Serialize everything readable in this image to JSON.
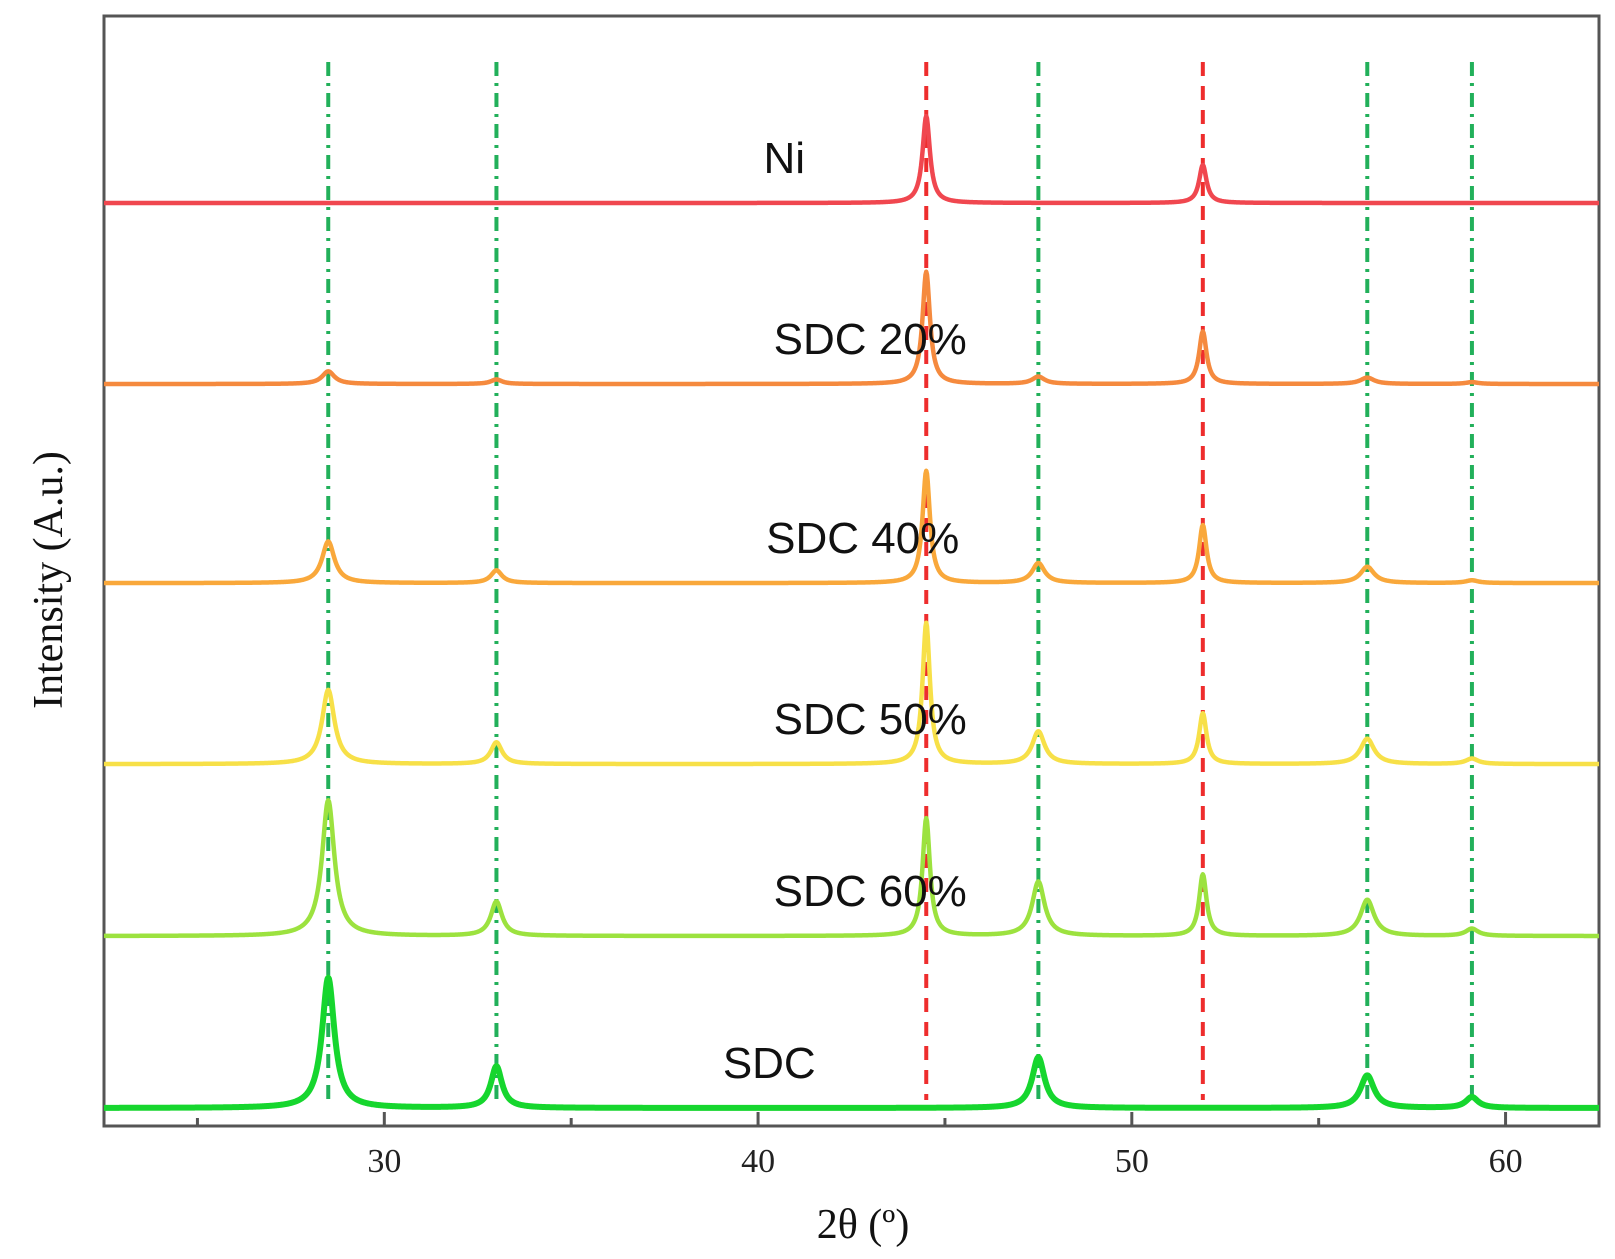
{
  "chart_data": {
    "type": "line",
    "title": "",
    "xlabel": "2θ (º)",
    "ylabel": "Intensity (A.u.)",
    "xlim": [
      22.5,
      62.5
    ],
    "x_ticks": [
      30,
      40,
      50,
      60
    ],
    "x_tick_labels": [
      "30",
      "40",
      "50",
      "60"
    ],
    "grid": false,
    "reference_lines": [
      {
        "phase": "SDC",
        "x": 28.5,
        "color": "#22b05a",
        "style": "dash-dot"
      },
      {
        "phase": "SDC",
        "x": 33.0,
        "color": "#22b05a",
        "style": "dash-dot"
      },
      {
        "phase": "Ni",
        "x": 44.5,
        "color": "#ee2d2d",
        "style": "dashed"
      },
      {
        "phase": "SDC",
        "x": 47.5,
        "color": "#22b05a",
        "style": "dash-dot"
      },
      {
        "phase": "Ni",
        "x": 51.9,
        "color": "#ee2d2d",
        "style": "dashed"
      },
      {
        "phase": "SDC",
        "x": 56.3,
        "color": "#22b05a",
        "style": "dash-dot"
      },
      {
        "phase": "SDC",
        "x": 59.1,
        "color": "#22b05a",
        "style": "dash-dot"
      }
    ],
    "series": [
      {
        "name": "Ni",
        "label": "Ni",
        "color": "#f0474f",
        "offset": 5.0,
        "label_x": 40.7,
        "peaks": [
          {
            "x": 44.5,
            "h": 0.48,
            "w": 0.12
          },
          {
            "x": 51.9,
            "h": 0.21,
            "w": 0.12
          }
        ]
      },
      {
        "name": "SDC 20%",
        "label": "SDC 20%",
        "color": "#f58a3e",
        "offset": 4.0,
        "label_x": 43.0,
        "peaks": [
          {
            "x": 28.5,
            "h": 0.07,
            "w": 0.2
          },
          {
            "x": 33.0,
            "h": 0.025,
            "w": 0.18
          },
          {
            "x": 44.5,
            "h": 0.62,
            "w": 0.12
          },
          {
            "x": 47.5,
            "h": 0.04,
            "w": 0.2
          },
          {
            "x": 51.9,
            "h": 0.29,
            "w": 0.12
          },
          {
            "x": 56.3,
            "h": 0.035,
            "w": 0.22
          },
          {
            "x": 59.1,
            "h": 0.01,
            "w": 0.2
          }
        ]
      },
      {
        "name": "SDC 40%",
        "label": "SDC 40%",
        "color": "#f9a83b",
        "offset": 2.9,
        "label_x": 42.8,
        "peaks": [
          {
            "x": 28.5,
            "h": 0.23,
            "w": 0.2
          },
          {
            "x": 33.0,
            "h": 0.07,
            "w": 0.18
          },
          {
            "x": 44.5,
            "h": 0.62,
            "w": 0.12
          },
          {
            "x": 47.5,
            "h": 0.11,
            "w": 0.2
          },
          {
            "x": 51.9,
            "h": 0.32,
            "w": 0.12
          },
          {
            "x": 56.3,
            "h": 0.09,
            "w": 0.22
          },
          {
            "x": 59.1,
            "h": 0.015,
            "w": 0.2
          }
        ]
      },
      {
        "name": "SDC 50%",
        "label": "SDC 50%",
        "color": "#f7e048",
        "offset": 1.9,
        "label_x": 43.0,
        "peaks": [
          {
            "x": 28.5,
            "h": 0.41,
            "w": 0.2
          },
          {
            "x": 33.0,
            "h": 0.12,
            "w": 0.18
          },
          {
            "x": 44.5,
            "h": 0.78,
            "w": 0.12
          },
          {
            "x": 47.5,
            "h": 0.18,
            "w": 0.2
          },
          {
            "x": 51.9,
            "h": 0.28,
            "w": 0.12
          },
          {
            "x": 56.3,
            "h": 0.14,
            "w": 0.22
          },
          {
            "x": 59.1,
            "h": 0.03,
            "w": 0.2
          }
        ]
      },
      {
        "name": "SDC 60%",
        "label": "SDC 60%",
        "color": "#9ce23f",
        "offset": 0.95,
        "label_x": 43.0,
        "peaks": [
          {
            "x": 28.5,
            "h": 0.75,
            "w": 0.2
          },
          {
            "x": 33.0,
            "h": 0.19,
            "w": 0.18
          },
          {
            "x": 44.5,
            "h": 0.65,
            "w": 0.12
          },
          {
            "x": 47.5,
            "h": 0.3,
            "w": 0.2
          },
          {
            "x": 51.9,
            "h": 0.34,
            "w": 0.12
          },
          {
            "x": 56.3,
            "h": 0.2,
            "w": 0.22
          },
          {
            "x": 59.1,
            "h": 0.04,
            "w": 0.2
          }
        ]
      },
      {
        "name": "SDC",
        "label": "SDC",
        "color": "#16d62e",
        "offset": 0.0,
        "label_x": 40.3,
        "peaks": [
          {
            "x": 28.5,
            "h": 0.72,
            "w": 0.2
          },
          {
            "x": 33.0,
            "h": 0.23,
            "w": 0.18
          },
          {
            "x": 47.5,
            "h": 0.28,
            "w": 0.2
          },
          {
            "x": 56.3,
            "h": 0.18,
            "w": 0.22
          },
          {
            "x": 59.1,
            "h": 0.06,
            "w": 0.2
          }
        ]
      }
    ]
  }
}
